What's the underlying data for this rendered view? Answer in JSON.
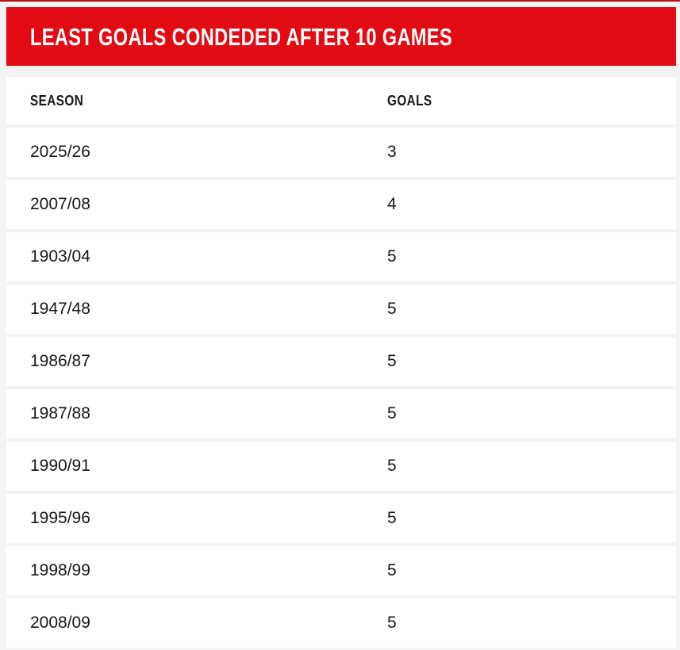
{
  "title": "LEAST GOALS CONDEDED AFTER 10 GAMES",
  "colors": {
    "accent_red": "#e20a13",
    "top_line": "#b30d12",
    "page_bg": "#f4f4f5",
    "row_bg": "#ffffff",
    "text_dark": "#17161b",
    "title_text": "#ffffff"
  },
  "table": {
    "columns": [
      "SEASON",
      "GOALS"
    ],
    "rows": [
      {
        "season": "2025/26",
        "goals": "3"
      },
      {
        "season": "2007/08",
        "goals": "4"
      },
      {
        "season": "1903/04",
        "goals": "5"
      },
      {
        "season": "1947/48",
        "goals": "5"
      },
      {
        "season": "1986/87",
        "goals": "5"
      },
      {
        "season": "1987/88",
        "goals": "5"
      },
      {
        "season": "1990/91",
        "goals": "5"
      },
      {
        "season": "1995/96",
        "goals": "5"
      },
      {
        "season": "1998/99",
        "goals": "5"
      },
      {
        "season": "2008/09",
        "goals": "5"
      }
    ]
  }
}
